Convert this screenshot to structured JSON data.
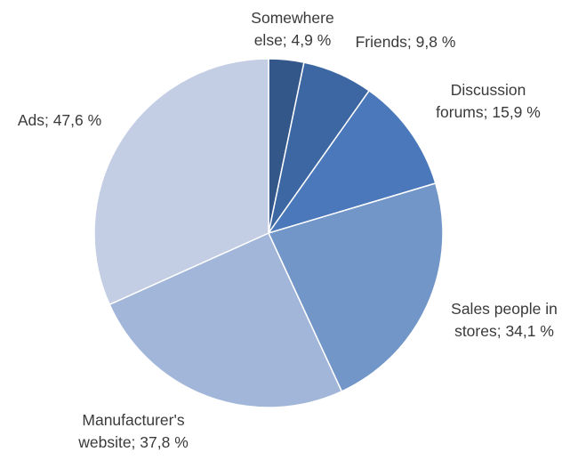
{
  "chart_data": {
    "type": "pie",
    "title": "",
    "start_angle_deg": 0,
    "direction": "clockwise",
    "slices": [
      {
        "label_lines": [
          "Somewhere",
          "else; 4,9 %"
        ],
        "value": 4.9,
        "color": "#34578a"
      },
      {
        "label_lines": [
          "Friends; 9,8 %"
        ],
        "value": 9.8,
        "color": "#3d67a3"
      },
      {
        "label_lines": [
          "Discussion",
          "forums; 15,9 %"
        ],
        "value": 15.9,
        "color": "#4a78bb"
      },
      {
        "label_lines": [
          "Sales people in",
          "stores; 34,1 %"
        ],
        "value": 34.1,
        "color": "#7296c8"
      },
      {
        "label_lines": [
          "Manufacturer's",
          "website; 37,8 %"
        ],
        "value": 37.8,
        "color": "#a2b6d9"
      },
      {
        "label_lines": [
          "Ads; 47,6 %"
        ],
        "value": 47.6,
        "color": "#c3cde3"
      }
    ]
  }
}
